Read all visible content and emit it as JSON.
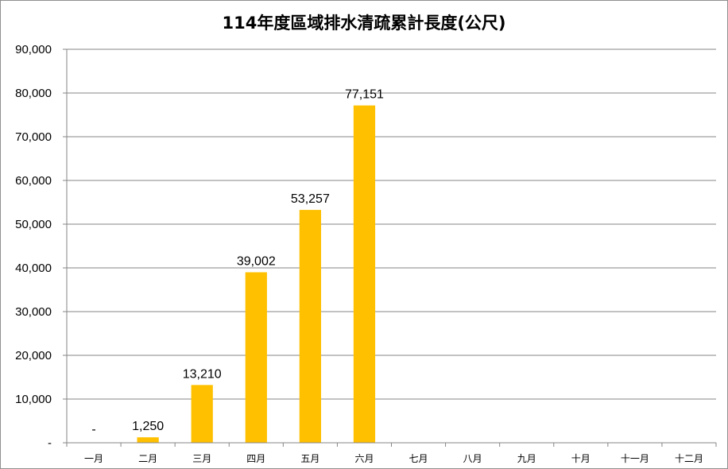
{
  "chart_data": {
    "type": "bar",
    "title": "114年度區域排水清疏累計長度(公尺)",
    "categories": [
      "一月",
      "二月",
      "三月",
      "四月",
      "五月",
      "六月",
      "七月",
      "八月",
      "九月",
      "十月",
      "十一月",
      "十二月"
    ],
    "values": [
      0,
      1250,
      13210,
      39002,
      53257,
      77151,
      null,
      null,
      null,
      null,
      null,
      null
    ],
    "data_labels": [
      "-",
      "1,250",
      "13,210",
      "39,002",
      "53,257",
      "77,151",
      null,
      null,
      null,
      null,
      null,
      null
    ],
    "ylim": [
      0,
      90000
    ],
    "yticks": [
      0,
      10000,
      20000,
      30000,
      40000,
      50000,
      60000,
      70000,
      80000,
      90000
    ],
    "ytick_labels": [
      "-",
      "10,000",
      "20,000",
      "30,000",
      "40,000",
      "50,000",
      "60,000",
      "70,000",
      "80,000",
      "90,000"
    ],
    "grid": "horizontal",
    "legend": "none",
    "bar_color": "#FFC000",
    "grid_color": "#868686"
  }
}
